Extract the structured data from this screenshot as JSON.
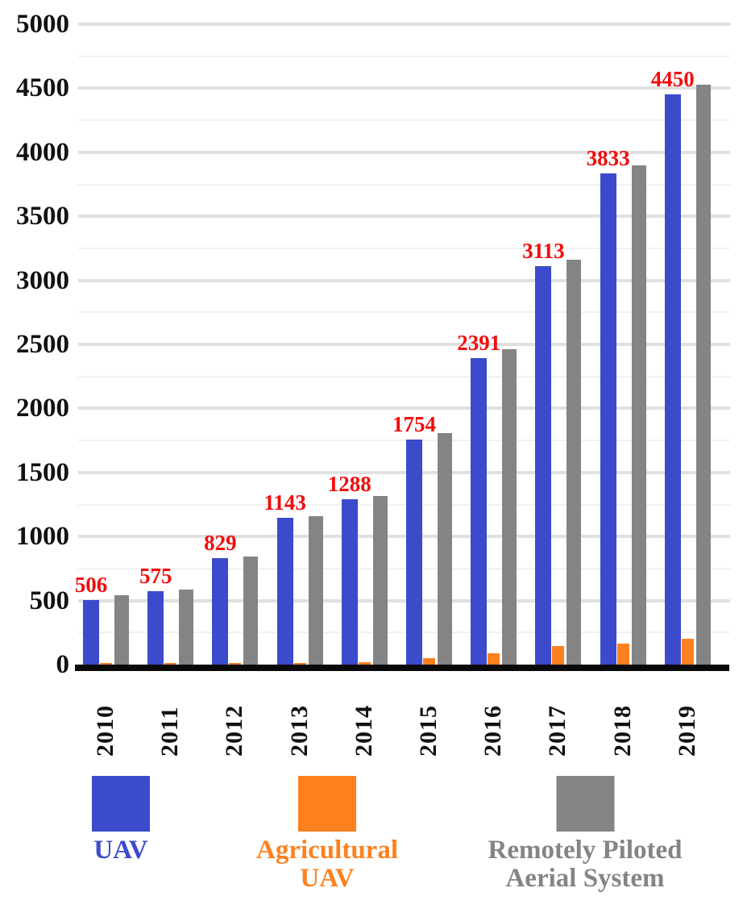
{
  "chart_data": {
    "type": "bar",
    "title": "",
    "xlabel": "",
    "ylabel": "",
    "categories": [
      "2010",
      "2011",
      "2012",
      "2013",
      "2014",
      "2015",
      "2016",
      "2017",
      "2018",
      "2019"
    ],
    "series": [
      {
        "name": "UAV",
        "color": "#3b4bcb",
        "legend_lines": [
          "UAV"
        ],
        "values": [
          506,
          575,
          829,
          1143,
          1288,
          1754,
          2391,
          3113,
          3833,
          4450
        ]
      },
      {
        "name": "Agricultural UAV",
        "color": "#ff801e",
        "legend_lines": [
          "Agricultural",
          "UAV"
        ],
        "values": [
          10,
          12,
          15,
          15,
          20,
          50,
          90,
          145,
          165,
          200
        ]
      },
      {
        "name": "Remotely Piloted Aerial System",
        "color": "#848484",
        "legend_lines": [
          "Remotely Piloted",
          "Aerial System"
        ],
        "values": [
          540,
          585,
          845,
          1160,
          1315,
          1810,
          2460,
          3160,
          3900,
          4530
        ]
      }
    ],
    "data_labels": {
      "series": "UAV",
      "color": "#f20d0d",
      "values": [
        "506",
        "575",
        "829",
        "1143",
        "1288",
        "1754",
        "2391",
        "3113",
        "3833",
        "4450"
      ]
    },
    "ylim": [
      0,
      5000
    ],
    "ytick_interval": 500,
    "minor_gridline_interval": 250,
    "yticks": [
      "0",
      "500",
      "1000",
      "1500",
      "2000",
      "2500",
      "3000",
      "3500",
      "4000",
      "4500",
      "5000"
    ],
    "grid": true,
    "legend_position": "bottom",
    "axis_color": "#0a0a0a",
    "major_gridline_color": "#e0e0e0",
    "minor_gridline_color": "#f1f1f1",
    "background_color": "#ffffff"
  }
}
